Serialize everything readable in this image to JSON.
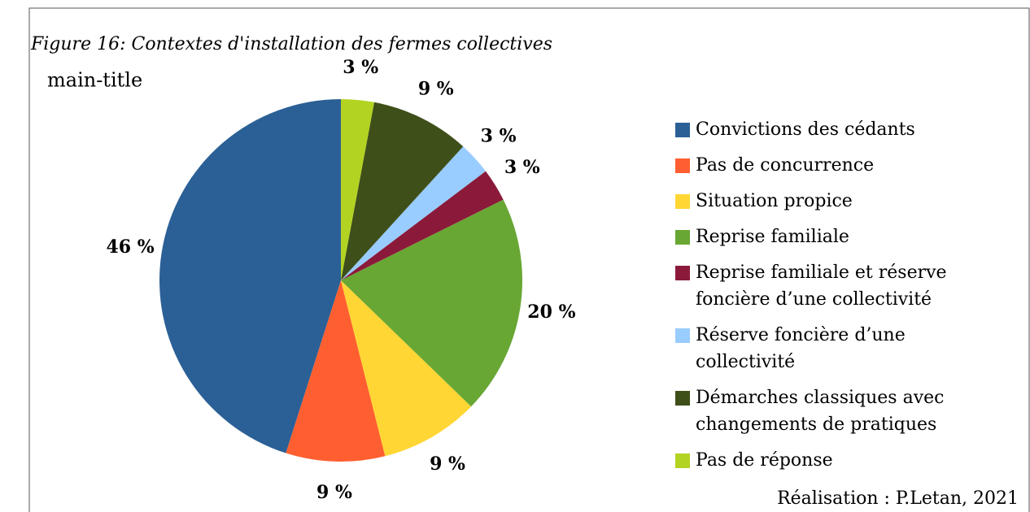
{
  "chart_data": {
    "type": "pie",
    "caption": "Figure 16: Contextes d'installation des fermes collectives",
    "title": "main-title",
    "source": "Réalisation : P.Letan, 2021",
    "categories": [
      "Convictions des cédants",
      "Pas de concurrence",
      "Situation propice",
      "Reprise familiale",
      "Reprise familiale et réserve foncière d’une collectivité",
      "Réserve foncière d’une collectivité",
      "Démarches classiques avec changements de pratiques",
      "Pas de réponse"
    ],
    "values": [
      46,
      9,
      9,
      20,
      3,
      3,
      9,
      3
    ],
    "value_labels": [
      "46 %",
      "9 %",
      "9 %",
      "20 %",
      "3 %",
      "3 %",
      "9 %",
      "3 %"
    ],
    "colors": [
      "#2b6096",
      "#ff5f30",
      "#ffd634",
      "#69a734",
      "#8b1a3a",
      "#99ccff",
      "#3f4f1a",
      "#b3d322"
    ],
    "legend": "right"
  }
}
